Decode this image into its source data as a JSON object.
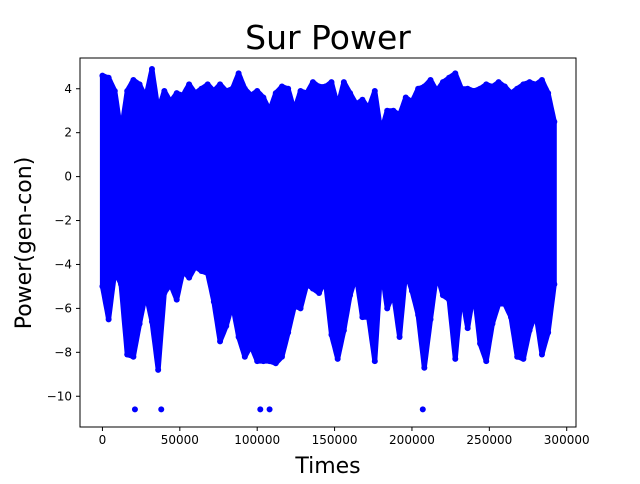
{
  "chart_data": {
    "type": "scatter",
    "title": "Sur Power",
    "xlabel": "Times",
    "ylabel": "Power(gen-con)",
    "xlim": [
      -14500,
      306000
    ],
    "ylim": [
      -11.4,
      5.4
    ],
    "xticks": [
      0,
      50000,
      100000,
      150000,
      200000,
      250000,
      300000
    ],
    "xtick_labels": [
      "0",
      "50000",
      "100000",
      "150000",
      "200000",
      "250000",
      "300000"
    ],
    "yticks": [
      -10,
      -8,
      -6,
      -4,
      -2,
      0,
      2,
      4
    ],
    "ytick_labels": [
      "−10",
      "−8",
      "−6",
      "−4",
      "−2",
      "0",
      "2",
      "4"
    ],
    "grid": false,
    "legend": "none",
    "series": [
      {
        "color": "#0000ff",
        "x_range": [
          0,
          292000
        ],
        "envelope": {
          "x": [
            0,
            4000,
            8000,
            12000,
            16000,
            20000,
            24000,
            28000,
            32000,
            36000,
            40000,
            44000,
            48000,
            52000,
            56000,
            60000,
            64000,
            68000,
            72000,
            76000,
            80000,
            84000,
            88000,
            92000,
            96000,
            100000,
            104000,
            108000,
            112000,
            116000,
            120000,
            124000,
            128000,
            132000,
            136000,
            140000,
            144000,
            148000,
            152000,
            156000,
            160000,
            164000,
            168000,
            172000,
            176000,
            180000,
            184000,
            188000,
            192000,
            196000,
            200000,
            204000,
            208000,
            212000,
            216000,
            220000,
            224000,
            228000,
            232000,
            236000,
            240000,
            244000,
            248000,
            252000,
            256000,
            260000,
            264000,
            268000,
            272000,
            276000,
            280000,
            284000,
            288000,
            292000
          ],
          "upper": [
            4.6,
            4.5,
            3.9,
            2.0,
            3.9,
            4.4,
            4.2,
            3.6,
            4.9,
            3.0,
            3.9,
            3.4,
            3.8,
            3.7,
            4.2,
            3.8,
            4.0,
            4.2,
            3.9,
            4.2,
            3.9,
            4.0,
            4.7,
            4.0,
            3.7,
            3.9,
            3.6,
            3.0,
            3.8,
            4.1,
            4.0,
            3.0,
            3.9,
            3.8,
            4.3,
            4.1,
            4.1,
            4.3,
            3.2,
            4.3,
            3.8,
            3.3,
            3.5,
            3.1,
            3.9,
            2.0,
            3.0,
            3.0,
            2.8,
            3.6,
            3.4,
            4.0,
            4.1,
            4.4,
            3.9,
            4.3,
            4.5,
            4.7,
            4.0,
            4.0,
            3.9,
            4.0,
            4.2,
            4.1,
            4.3,
            4.1,
            3.8,
            4.0,
            4.2,
            4.3,
            4.2,
            4.4,
            3.8,
            2.5
          ],
          "lower": [
            -5.0,
            -6.5,
            -4.3,
            -4.9,
            -8.1,
            -8.2,
            -6.7,
            -5.3,
            -6.6,
            -8.8,
            -5.3,
            -4.9,
            -5.6,
            -4.3,
            -4.6,
            -4.1,
            -4.3,
            -4.4,
            -5.7,
            -7.5,
            -6.8,
            -5.8,
            -7.3,
            -8.2,
            -7.7,
            -8.4,
            -8.4,
            -8.4,
            -8.5,
            -8.2,
            -7.1,
            -5.9,
            -6.0,
            -4.9,
            -5.1,
            -5.3,
            -4.7,
            -7.2,
            -8.3,
            -7.0,
            -5.4,
            -4.5,
            -6.4,
            -6.4,
            -8.4,
            -4.0,
            -6.0,
            -5.3,
            -7.3,
            -4.3,
            -5.2,
            -6.3,
            -8.7,
            -6.5,
            -4.4,
            -5.4,
            -5.6,
            -8.3,
            -5.3,
            -6.9,
            -5.2,
            -7.6,
            -8.4,
            -6.7,
            -5.8,
            -5.8,
            -6.4,
            -8.2,
            -8.3,
            -7.0,
            -6.2,
            -8.1,
            -7.1,
            -4.9
          ]
        },
        "outliers": [
          {
            "x": 21000,
            "y": -10.6
          },
          {
            "x": 38000,
            "y": -10.6
          },
          {
            "x": 102000,
            "y": -10.6
          },
          {
            "x": 108000,
            "y": -10.6
          },
          {
            "x": 207000,
            "y": -10.6
          }
        ]
      }
    ]
  }
}
